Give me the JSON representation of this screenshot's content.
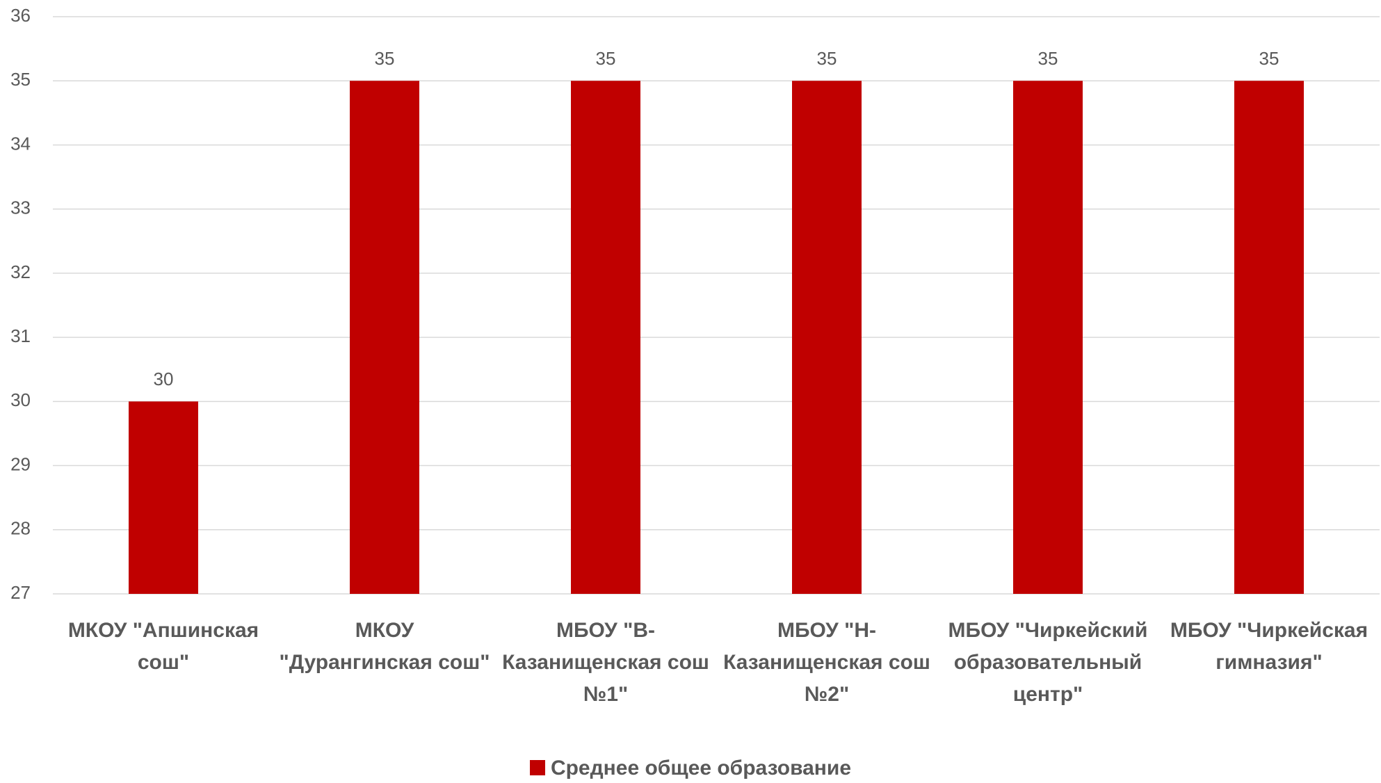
{
  "chart_data": {
    "type": "bar",
    "categories": [
      "МКОУ \"Апшинская сош\"",
      "МКОУ \"Дурангинская сош\"",
      "МБОУ \"В-Казанищенская сош №1\"",
      "МБОУ \"Н-Казанищенская сош №2\"",
      "МБОУ \"Чиркейский образовательный центр\"",
      "МБОУ \"Чиркейская гимназия\""
    ],
    "series": [
      {
        "name": "Среднее общее образование",
        "color": "#c00000",
        "values": [
          30,
          35,
          35,
          35,
          35,
          35
        ]
      }
    ],
    "ylim": [
      27,
      36
    ],
    "yticks": [
      27,
      28,
      29,
      30,
      31,
      32,
      33,
      34,
      35,
      36
    ],
    "grid": true,
    "legend": "bottom"
  }
}
